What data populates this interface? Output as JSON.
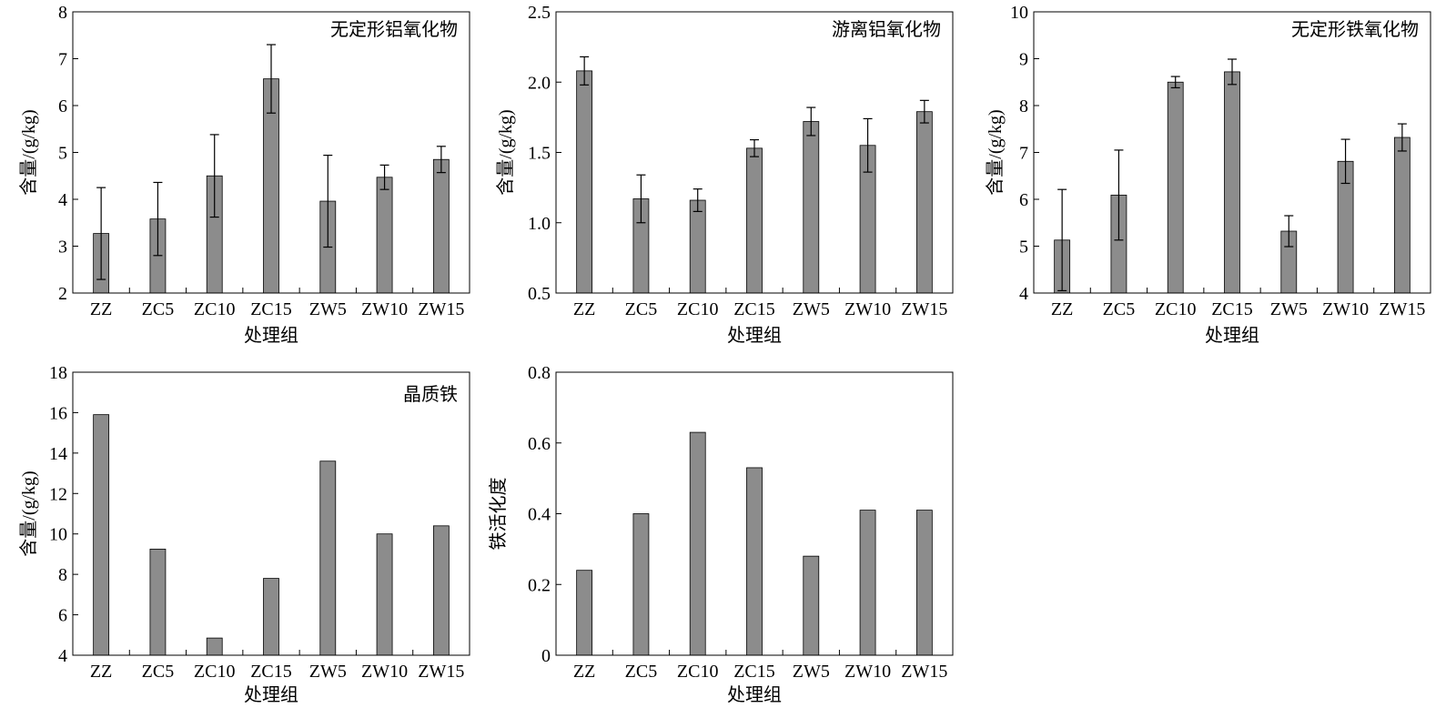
{
  "chart_data": [
    {
      "type": "bar",
      "title": "无定形铝氧化物",
      "xlabel": "处理组",
      "ylabel": "含量/(g/kg)",
      "categories": [
        "ZZ",
        "ZC5",
        "ZC10",
        "ZC15",
        "ZW5",
        "ZW10",
        "ZW15"
      ],
      "values": [
        3.27,
        3.58,
        4.5,
        6.57,
        3.96,
        4.47,
        4.85
      ],
      "errors": [
        0.98,
        0.78,
        0.88,
        0.73,
        0.98,
        0.26,
        0.28
      ],
      "ylim": [
        2,
        8
      ],
      "yticks": [
        "2",
        "3",
        "4",
        "5",
        "6",
        "7",
        "8"
      ],
      "bar_color": "#8c8c8c"
    },
    {
      "type": "bar",
      "title": "游离铝氧化物",
      "xlabel": "处理组",
      "ylabel": "含量/(g/kg)",
      "categories": [
        "ZZ",
        "ZC5",
        "ZC10",
        "ZC15",
        "ZW5",
        "ZW10",
        "ZW15"
      ],
      "values": [
        2.08,
        1.17,
        1.16,
        1.53,
        1.72,
        1.55,
        1.79
      ],
      "errors": [
        0.1,
        0.17,
        0.08,
        0.06,
        0.1,
        0.19,
        0.08
      ],
      "ylim": [
        0.5,
        2.5
      ],
      "yticks": [
        "0.5",
        "1.0",
        "1.5",
        "2.0",
        "2.5"
      ],
      "bar_color": "#8c8c8c"
    },
    {
      "type": "bar",
      "title": "无定形铁氧化物",
      "xlabel": "处理组",
      "ylabel": "含量/(g/kg)",
      "categories": [
        "ZZ",
        "ZC5",
        "ZC10",
        "ZC15",
        "ZW5",
        "ZW10",
        "ZW15"
      ],
      "values": [
        5.13,
        6.09,
        8.5,
        8.72,
        5.32,
        6.81,
        7.32
      ],
      "errors": [
        1.08,
        0.96,
        0.12,
        0.27,
        0.33,
        0.47,
        0.29
      ],
      "ylim": [
        4,
        10
      ],
      "yticks": [
        "4",
        "5",
        "6",
        "7",
        "8",
        "9",
        "10"
      ],
      "bar_color": "#8c8c8c"
    },
    {
      "type": "bar",
      "title": "晶质铁",
      "xlabel": "处理组",
      "ylabel": "含量/(g/kg)",
      "categories": [
        "ZZ",
        "ZC5",
        "ZC10",
        "ZC15",
        "ZW5",
        "ZW10",
        "ZW15"
      ],
      "values": [
        15.9,
        9.25,
        4.85,
        7.8,
        13.6,
        10.0,
        10.4
      ],
      "ylim": [
        4,
        18
      ],
      "yticks": [
        "4",
        "6",
        "8",
        "10",
        "12",
        "14",
        "16",
        "18"
      ],
      "bar_color": "#8c8c8c"
    },
    {
      "type": "bar",
      "title": "",
      "xlabel": "处理组",
      "ylabel": "铁活化度",
      "categories": [
        "ZZ",
        "ZC5",
        "ZC10",
        "ZC15",
        "ZW5",
        "ZW10",
        "ZW15"
      ],
      "values": [
        0.24,
        0.4,
        0.63,
        0.53,
        0.28,
        0.41,
        0.41
      ],
      "ylim": [
        0,
        0.8
      ],
      "yticks": [
        "0",
        "0.2",
        "0.4",
        "0.6",
        "0.8"
      ],
      "bar_color": "#8c8c8c"
    }
  ]
}
